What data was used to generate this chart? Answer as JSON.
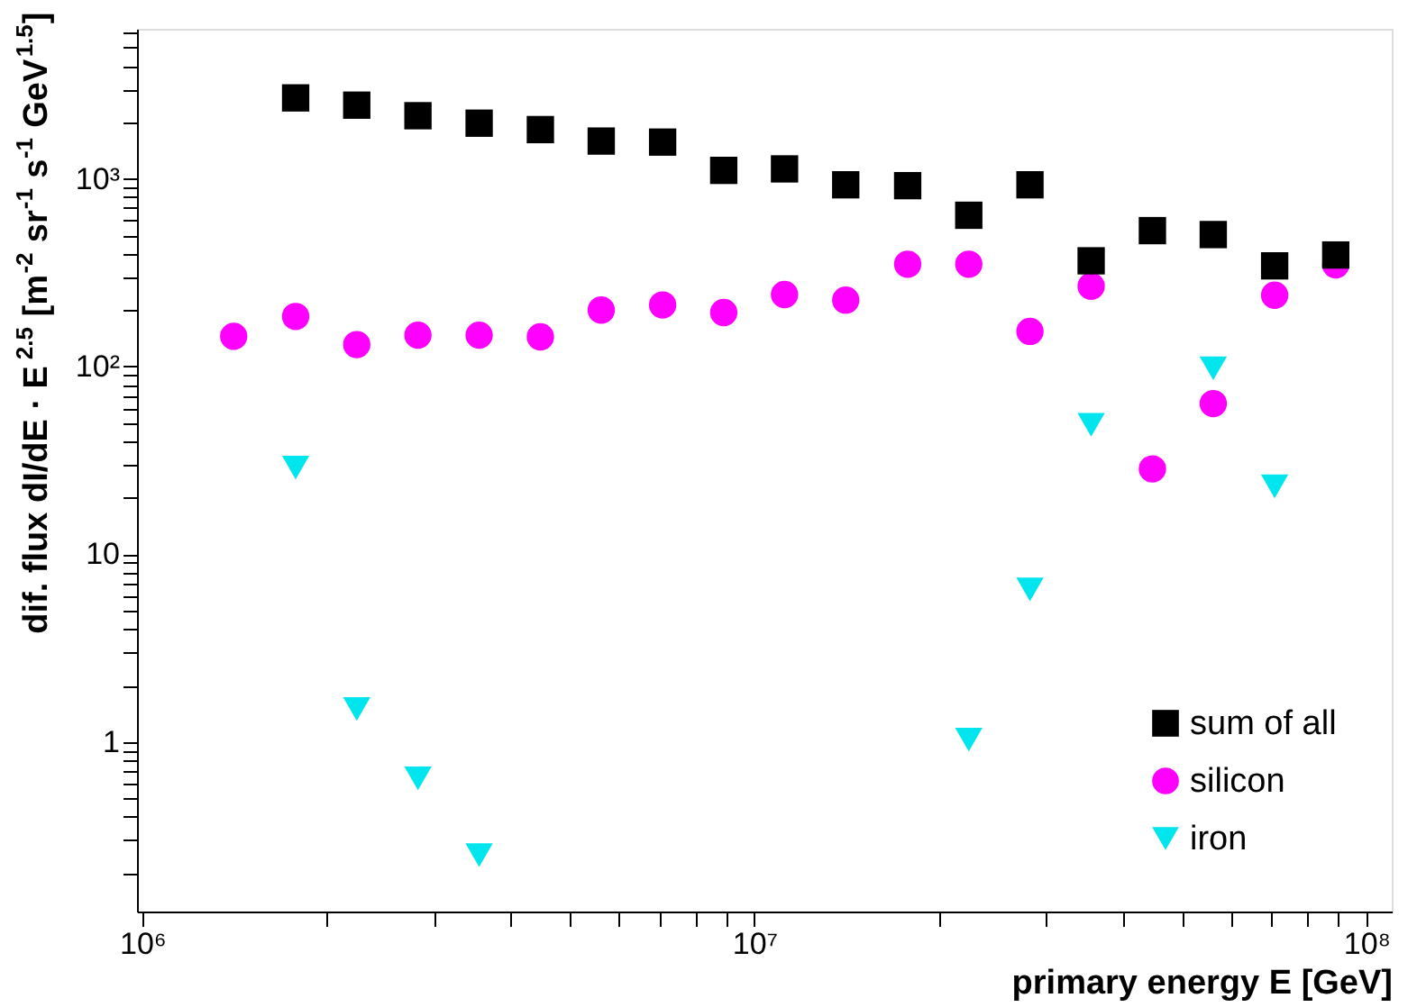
{
  "chart_data": {
    "type": "scatter",
    "xlabel": "primary energy E [GeV]",
    "ylabel": "dif. flux dI/dE · E$^{2.5}$ [m$^{-2}$ sr$^{-1}$ s$^{-1}$ GeV$^{1.5}$]",
    "x": [
      1410000,
      1780000,
      2240000,
      2820000,
      3550000,
      4470000,
      5620000,
      7080000,
      8910000,
      11200000,
      14100000,
      17800000,
      22400000,
      28200000,
      35500000,
      44700000,
      56200000,
      70800000,
      89100000
    ],
    "series": [
      {
        "name": "sum of all",
        "color": "#000000",
        "marker": "square",
        "values": [
          null,
          2700,
          2470,
          2170,
          1980,
          1830,
          1590,
          1570,
          1110,
          1130,
          930,
          920,
          640,
          930,
          366,
          530,
          505,
          344,
          393
        ]
      },
      {
        "name": "silicon",
        "color": "#ff00ff",
        "marker": "circle",
        "values": [
          145,
          185,
          131,
          147,
          147,
          144,
          200,
          213,
          194,
          242,
          226,
          351,
          351,
          154,
          268,
          28.5,
          63.5,
          240,
          348
        ]
      },
      {
        "name": "iron",
        "color": "#00e5ee",
        "marker": "triangle",
        "values": [
          null,
          29,
          1.5,
          0.64,
          0.25,
          null,
          null,
          null,
          null,
          null,
          null,
          null,
          1.03,
          6.5,
          49,
          null,
          98,
          23,
          null
        ]
      }
    ],
    "log": "xy",
    "xlim": [
      980000,
      110000000
    ],
    "ylim": [
      0.125,
      6300
    ],
    "xticks": [
      {
        "value": 1000000,
        "label": "10⁶"
      },
      {
        "value": 2000000,
        "label": null
      },
      {
        "value": 3000000,
        "label": null
      },
      {
        "value": 4000000,
        "label": null
      },
      {
        "value": 5000000,
        "label": null
      },
      {
        "value": 6000000,
        "label": null
      },
      {
        "value": 7000000,
        "label": null
      },
      {
        "value": 8000000,
        "label": null
      },
      {
        "value": 9000000,
        "label": null
      },
      {
        "value": 10000000,
        "label": "10⁷"
      },
      {
        "value": 20000000,
        "label": null
      },
      {
        "value": 30000000,
        "label": null
      },
      {
        "value": 40000000,
        "label": null
      },
      {
        "value": 50000000,
        "label": null
      },
      {
        "value": 60000000,
        "label": null
      },
      {
        "value": 70000000,
        "label": null
      },
      {
        "value": 80000000,
        "label": null
      },
      {
        "value": 90000000,
        "label": null
      },
      {
        "value": 100000000,
        "label": "10⁸"
      }
    ],
    "yticks": [
      {
        "value": 0.2,
        "label": null
      },
      {
        "value": 0.3,
        "label": null
      },
      {
        "value": 0.4,
        "label": null
      },
      {
        "value": 0.5,
        "label": null
      },
      {
        "value": 0.6,
        "label": null
      },
      {
        "value": 0.7,
        "label": null
      },
      {
        "value": 0.8,
        "label": null
      },
      {
        "value": 0.9,
        "label": null
      },
      1,
      {
        "value": 2,
        "label": null
      },
      {
        "value": 3,
        "label": null
      },
      {
        "value": 4,
        "label": null
      },
      {
        "value": 5,
        "label": null
      },
      {
        "value": 6,
        "label": null
      },
      {
        "value": 7,
        "label": null
      },
      {
        "value": 8,
        "label": null
      },
      {
        "value": 9,
        "label": null
      },
      10,
      {
        "value": 20,
        "label": null
      },
      {
        "value": 30,
        "label": null
      },
      {
        "value": 40,
        "label": null
      },
      {
        "value": 50,
        "label": null
      },
      {
        "value": 60,
        "label": null
      },
      {
        "value": 70,
        "label": null
      },
      {
        "value": 80,
        "label": null
      },
      {
        "value": 90,
        "label": null
      },
      {
        "value": 100,
        "label": "10²"
      },
      {
        "value": 200,
        "label": null
      },
      {
        "value": 300,
        "label": null
      },
      {
        "value": 400,
        "label": null
      },
      {
        "value": 500,
        "label": null
      },
      {
        "value": 600,
        "label": null
      },
      {
        "value": 700,
        "label": null
      },
      {
        "value": 800,
        "label": null
      },
      {
        "value": 900,
        "label": null
      },
      {
        "value": 1000,
        "label": "10³"
      },
      {
        "value": 2000,
        "label": null
      },
      {
        "value": 3000,
        "label": null
      },
      {
        "value": 4000,
        "label": null
      },
      {
        "value": 5000,
        "label": null
      },
      {
        "value": 6000,
        "label": null
      }
    ],
    "grid": false,
    "legend": "bottom right"
  }
}
